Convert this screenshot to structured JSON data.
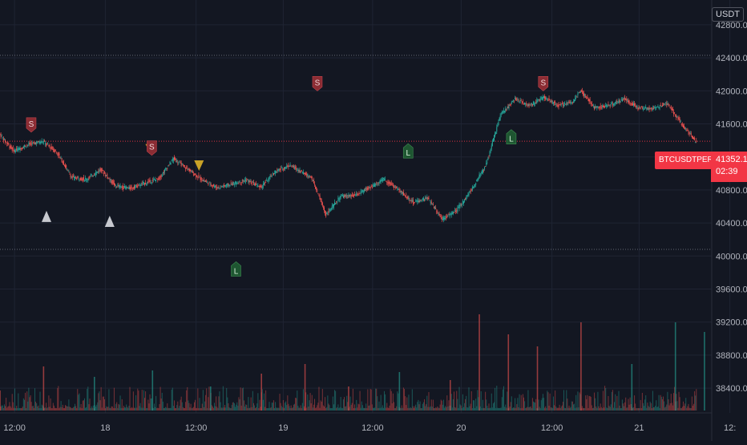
{
  "currency": "USDT",
  "symbol": "BTCUSDTPERP",
  "last_price": "41352.1",
  "countdown": "02:39",
  "colors": {
    "background": "#131722",
    "grid": "#1f2433",
    "up": "#26a69a",
    "down": "#ef5350",
    "level_line": "#787b86",
    "price_line": "#f23645",
    "long_label": "#1e5631",
    "short_label": "#8b2c33",
    "warn": "#c9a227",
    "neutral": "#c7c9cf"
  },
  "chart_data": {
    "type": "candlestick",
    "y_axis": {
      "ticks": [
        38400,
        38800,
        39200,
        39600,
        40000,
        40400,
        40800,
        41200,
        41600,
        42000,
        42400,
        42800
      ],
      "tick_labels": [
        "38400.0",
        "38800.0",
        "39200.0",
        "39600.0",
        "40000.0",
        "40400.0",
        "40800.0",
        "41200.0",
        "41600.0",
        "42000.0",
        "42400.0",
        "42800.0"
      ],
      "range": [
        38100,
        43100
      ]
    },
    "x_axis": {
      "tick_labels": [
        "12:00",
        "18",
        "12:00",
        "19",
        "12:00",
        "20",
        "12:00",
        "21",
        "12:"
      ],
      "range": [
        0,
        98
      ]
    },
    "horizontal_levels": [
      42430,
      40080,
      41390
    ],
    "price_path": [
      [
        0,
        41480
      ],
      [
        2,
        41270
      ],
      [
        4,
        41350
      ],
      [
        6,
        41390
      ],
      [
        8,
        41250
      ],
      [
        10,
        40950
      ],
      [
        12,
        40930
      ],
      [
        14,
        41050
      ],
      [
        16,
        40850
      ],
      [
        18,
        40820
      ],
      [
        22,
        40940
      ],
      [
        24,
        41180
      ],
      [
        26,
        41050
      ],
      [
        28,
        40920
      ],
      [
        30,
        40830
      ],
      [
        32,
        40870
      ],
      [
        34,
        40920
      ],
      [
        36,
        40830
      ],
      [
        38,
        41020
      ],
      [
        40,
        41100
      ],
      [
        43,
        40950
      ],
      [
        45,
        40500
      ],
      [
        47,
        40720
      ],
      [
        49,
        40730
      ],
      [
        51,
        40830
      ],
      [
        53,
        40930
      ],
      [
        55,
        40800
      ],
      [
        57,
        40650
      ],
      [
        59,
        40700
      ],
      [
        61,
        40450
      ],
      [
        63,
        40550
      ],
      [
        65,
        40800
      ],
      [
        67,
        41100
      ],
      [
        69,
        41700
      ],
      [
        71,
        41900
      ],
      [
        73,
        41820
      ],
      [
        75,
        41920
      ],
      [
        77,
        41820
      ],
      [
        79,
        41870
      ],
      [
        80,
        42000
      ],
      [
        82,
        41800
      ],
      [
        84,
        41820
      ],
      [
        86,
        41900
      ],
      [
        88,
        41800
      ],
      [
        90,
        41780
      ],
      [
        92,
        41850
      ],
      [
        94,
        41600
      ],
      [
        96,
        41370
      ]
    ],
    "volume_spikes": [
      [
        0,
        25
      ],
      [
        6,
        55
      ],
      [
        13,
        42
      ],
      [
        21,
        50
      ],
      [
        29,
        30
      ],
      [
        36,
        46
      ],
      [
        42,
        58
      ],
      [
        48,
        30
      ],
      [
        55,
        48
      ],
      [
        62,
        38
      ],
      [
        66,
        120
      ],
      [
        70,
        95
      ],
      [
        74,
        80
      ],
      [
        80,
        110
      ],
      [
        87,
        58
      ],
      [
        93,
        110
      ],
      [
        97,
        98
      ]
    ],
    "markers": [
      {
        "type": "short",
        "text": "S",
        "x": 4.3,
        "price": 41480
      },
      {
        "type": "short",
        "text": "S",
        "x": 43.7,
        "price": 41980
      },
      {
        "type": "short",
        "text": "S",
        "x": 74.8,
        "price": 41980
      },
      {
        "type": "warn-short",
        "text": "S",
        "x": 20.9,
        "price": 41200
      },
      {
        "type": "long",
        "text": "L",
        "x": 32.5,
        "price": 39950
      },
      {
        "type": "long",
        "text": "L",
        "x": 56.2,
        "price": 41380
      },
      {
        "type": "long",
        "text": "L",
        "x": 70.4,
        "price": 41550
      },
      {
        "type": "triangle-up",
        "x": 6.4,
        "price": 40490
      },
      {
        "type": "triangle-up",
        "x": 15.1,
        "price": 40430
      },
      {
        "type": "triangle-down",
        "x": 27.4,
        "price": 41100
      }
    ]
  }
}
